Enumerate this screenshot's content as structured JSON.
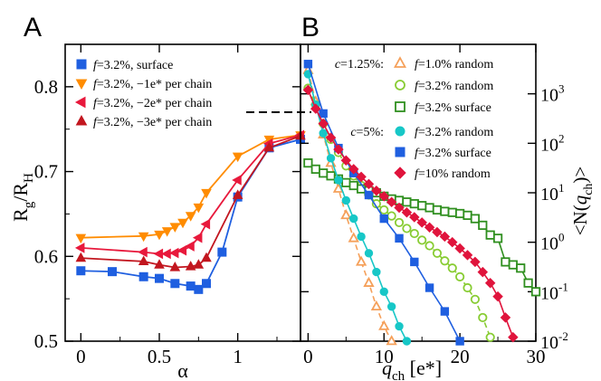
{
  "figure": {
    "panel_a_letter": "A",
    "panel_b_letter": "B"
  },
  "chart_data": [
    {
      "type": "line",
      "panel": "A",
      "xlabel": "α",
      "ylabel": "Rg/RH",
      "ylabel_main": "R",
      "ylabel_sub1": "g",
      "ylabel_slash": "/R",
      "ylabel_sub2": "H",
      "xlim": [
        -0.1,
        1.4
      ],
      "ylim": [
        0.5,
        0.85
      ],
      "xticks": [
        0,
        0.5,
        1
      ],
      "xtick_labels": [
        "0",
        "0.5",
        "1"
      ],
      "yticks": [
        0.5,
        0.6,
        0.7,
        0.8
      ],
      "ytick_labels": [
        "0.5",
        "0.6",
        "0.7",
        "0.8"
      ],
      "grid": false,
      "legend_position": "top-left",
      "reference_line_y": 0.77,
      "series": [
        {
          "name_prefix": "f",
          "name": "=3.2%, surface",
          "color": "#1f5fe0",
          "marker": "square",
          "x": [
            0,
            0.2,
            0.4,
            0.5,
            0.6,
            0.7,
            0.75,
            0.8,
            0.9,
            1.0,
            1.2,
            1.4
          ],
          "y": [
            0.583,
            0.582,
            0.576,
            0.574,
            0.568,
            0.565,
            0.561,
            0.568,
            0.605,
            0.67,
            0.728,
            0.738
          ]
        },
        {
          "name_prefix": "f",
          "name": "=3.2%, −1e* per chain",
          "color": "#ff8c00",
          "marker": "triangle-down",
          "x": [
            0,
            0.4,
            0.5,
            0.55,
            0.6,
            0.65,
            0.7,
            0.75,
            0.8,
            1.0,
            1.2,
            1.4
          ],
          "y": [
            0.622,
            0.624,
            0.626,
            0.63,
            0.635,
            0.64,
            0.648,
            0.658,
            0.675,
            0.718,
            0.738,
            0.743
          ]
        },
        {
          "name_prefix": "f",
          "name": "=3.2%, −2e* per chain",
          "color": "#e8193c",
          "marker": "triangle-left",
          "x": [
            0,
            0.4,
            0.5,
            0.55,
            0.6,
            0.65,
            0.7,
            0.75,
            0.8,
            1.0,
            1.2,
            1.4
          ],
          "y": [
            0.61,
            0.605,
            0.603,
            0.603,
            0.604,
            0.607,
            0.612,
            0.622,
            0.638,
            0.69,
            0.733,
            0.743
          ]
        },
        {
          "name_prefix": "f",
          "name": "=3.2%, −3e* per chain",
          "color": "#c2161f",
          "marker": "triangle-up",
          "x": [
            0,
            0.4,
            0.5,
            0.6,
            0.7,
            0.75,
            0.8,
            1.0,
            1.2,
            1.4
          ],
          "y": [
            0.598,
            0.594,
            0.59,
            0.587,
            0.588,
            0.59,
            0.598,
            0.672,
            0.728,
            0.742
          ]
        }
      ]
    },
    {
      "type": "line",
      "panel": "B",
      "xlabel": "qch [e*]",
      "xlabel_main": "q",
      "xlabel_sub": "ch",
      "xlabel_unit": " [e*]",
      "ylabel": "<N(qch)>",
      "ylabel_open": "<N(",
      "ylabel_q": "q",
      "ylabel_sub": "ch",
      "ylabel_close": ")>",
      "xlim": [
        -1,
        30
      ],
      "ylim": [
        0.01,
        10000
      ],
      "yscale": "log",
      "xticks": [
        0,
        10,
        20,
        30
      ],
      "xtick_labels": [
        "0",
        "10",
        "20",
        "30"
      ],
      "yticks": [
        0.01,
        0.1,
        1,
        10,
        100,
        1000
      ],
      "ytick_base": "10",
      "ytick_exps": [
        "-2",
        "-1",
        "0",
        "1",
        "2",
        "3"
      ],
      "grid": false,
      "legend_position": "top-right",
      "group_labels": [
        {
          "var": "c",
          "text": "=1.25%:"
        },
        {
          "var": "c",
          "text": "=5%:"
        }
      ],
      "series": [
        {
          "group": 0,
          "name_prefix": "f",
          "name": "=1.0% random",
          "color": "#f5a05a",
          "marker": "triangle-up-open",
          "dashed": true,
          "x": [
            0,
            1,
            2,
            3,
            4,
            5,
            6,
            7,
            8,
            9,
            10,
            11
          ],
          "y": [
            3000,
            700,
            150,
            40,
            12,
            3.5,
            1.2,
            0.4,
            0.15,
            0.05,
            0.02,
            0.01
          ]
        },
        {
          "group": 0,
          "name_prefix": "f",
          "name": "=3.2% random",
          "color": "#88cc33",
          "marker": "circle-open",
          "dashed": true,
          "x": [
            0,
            1,
            2,
            3,
            4,
            5,
            6,
            7,
            8,
            9,
            10,
            11,
            12,
            13,
            14,
            15,
            16,
            17,
            18,
            19,
            20,
            21,
            22,
            23,
            24
          ],
          "y": [
            1300,
            600,
            250,
            120,
            65,
            35,
            22,
            14,
            9,
            6,
            4.5,
            3.4,
            2.5,
            1.9,
            1.5,
            1.1,
            0.85,
            0.6,
            0.42,
            0.3,
            0.2,
            0.12,
            0.07,
            0.03,
            0.012
          ]
        },
        {
          "group": 0,
          "name_prefix": "f",
          "name": "=3.2% surface",
          "color": "#2f8f1f",
          "marker": "square-open",
          "dashed": false,
          "x": [
            0,
            1,
            2,
            3,
            4,
            5,
            6,
            7,
            8,
            9,
            10,
            11,
            12,
            13,
            14,
            15,
            16,
            17,
            18,
            19,
            20,
            21,
            22,
            23,
            24,
            25,
            26,
            27,
            28,
            29,
            30
          ],
          "y": [
            40,
            30,
            25,
            22,
            19,
            16,
            14,
            12,
            11,
            10,
            8.5,
            7.5,
            7,
            6.5,
            6,
            5.5,
            5,
            4.5,
            4.2,
            4,
            3.8,
            3.5,
            3,
            2.2,
            1.4,
            1.2,
            0.4,
            0.35,
            0.3,
            0.15,
            0.1
          ]
        },
        {
          "group": 1,
          "name_prefix": "f",
          "name": "=3.2% random",
          "color": "#17c7c7",
          "marker": "circle",
          "dashed": false,
          "x": [
            0,
            1,
            2,
            3,
            4,
            5,
            6,
            7,
            8,
            9,
            10,
            11,
            12,
            13
          ],
          "y": [
            2500,
            600,
            160,
            50,
            18,
            7,
            3,
            1.3,
            0.6,
            0.25,
            0.1,
            0.05,
            0.02,
            0.01
          ]
        },
        {
          "group": 1,
          "name_prefix": "f",
          "name": "=3.2% surface",
          "color": "#1f5fe0",
          "marker": "square",
          "dashed": false,
          "x": [
            0,
            2,
            4,
            6,
            8,
            10,
            12,
            14,
            16,
            18,
            20
          ],
          "y": [
            4000,
            400,
            80,
            25,
            9,
            3,
            1.2,
            0.4,
            0.12,
            0.04,
            0.01
          ]
        },
        {
          "group": 1,
          "name_prefix": "f",
          "name": "=10% random",
          "color": "#e0143c",
          "marker": "diamond",
          "dashed": false,
          "x": [
            0,
            1,
            2,
            3,
            4,
            5,
            6,
            7,
            8,
            9,
            10,
            11,
            12,
            13,
            14,
            15,
            16,
            17,
            18,
            19,
            20,
            21,
            22,
            23,
            24,
            25,
            26,
            27
          ],
          "y": [
            1200,
            500,
            250,
            130,
            75,
            45,
            30,
            21,
            15,
            11,
            8.5,
            6.5,
            5,
            4,
            3.2,
            2.5,
            2,
            1.6,
            1.3,
            1.0,
            0.75,
            0.55,
            0.4,
            0.25,
            0.15,
            0.08,
            0.03,
            0.012
          ]
        }
      ]
    }
  ]
}
